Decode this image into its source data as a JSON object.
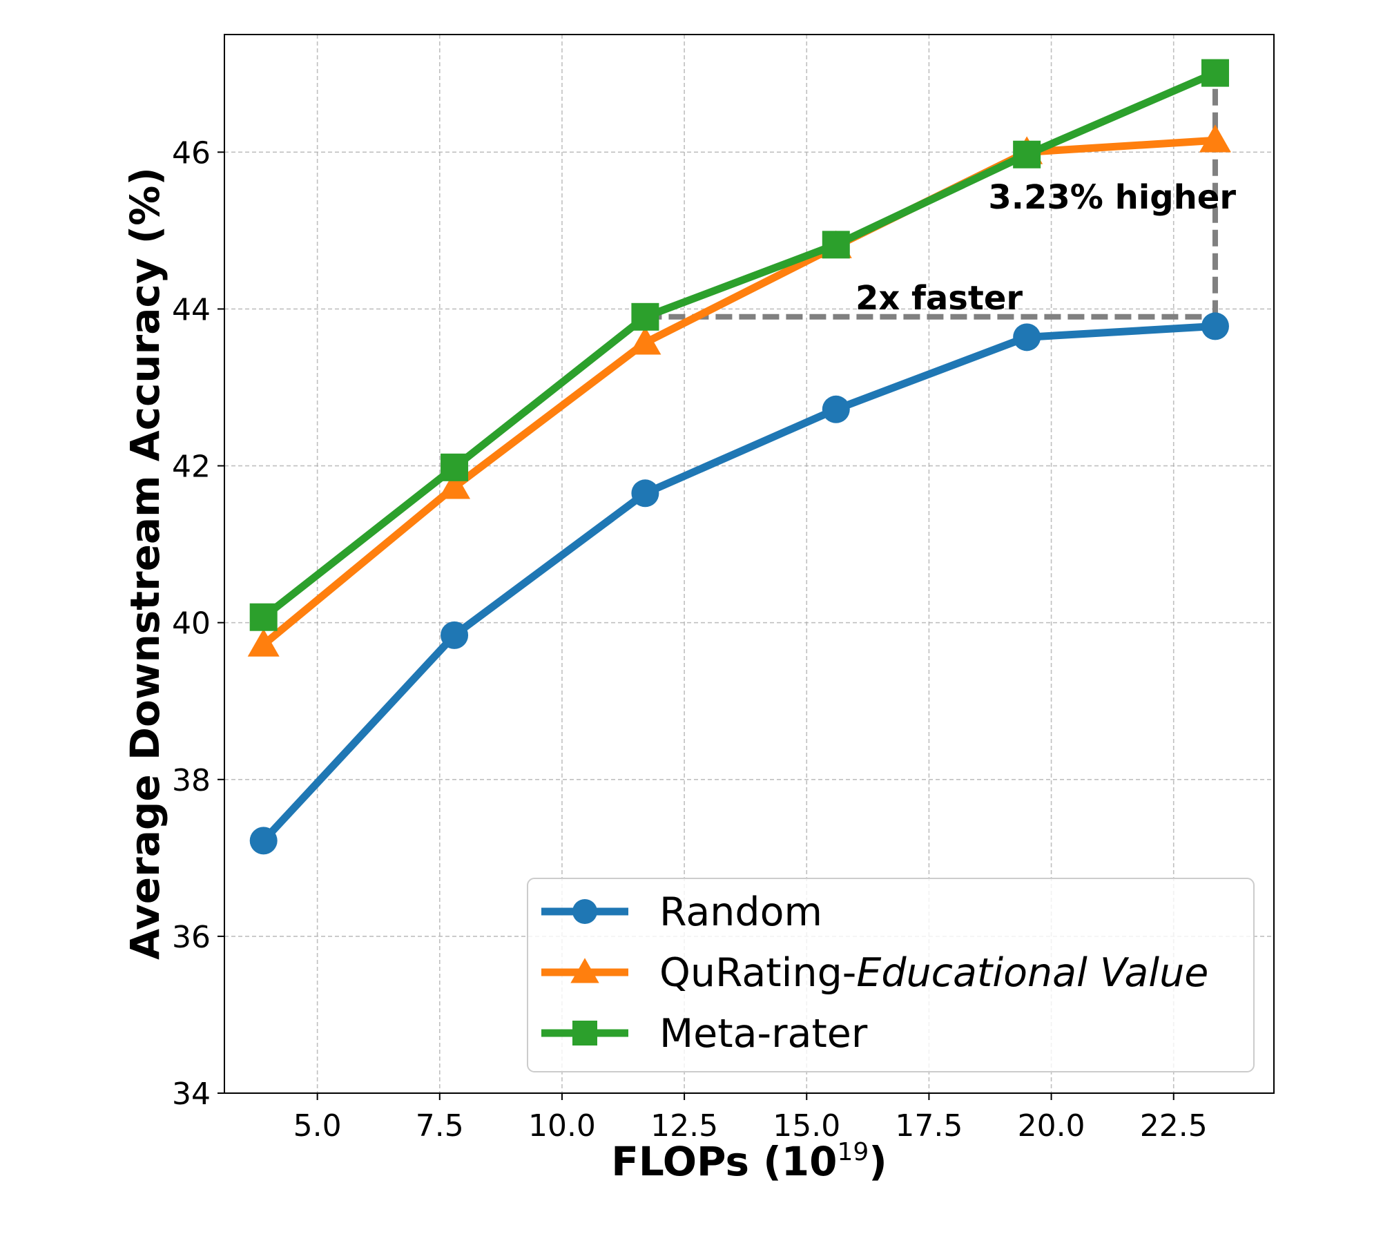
{
  "chart_data": {
    "type": "line",
    "xlabel": "FLOPs (10",
    "xlabel_exponent": "19",
    "xlabel_close": ")",
    "ylabel": "Average Downstream Accuracy (%)",
    "xlim": [
      3.1,
      24.55
    ],
    "ylim": [
      34,
      47.5
    ],
    "x_ticks": [
      5.0,
      7.5,
      10.0,
      12.5,
      15.0,
      17.5,
      20.0,
      22.5
    ],
    "x_tick_labels": [
      "5.0",
      "7.5",
      "10.0",
      "12.5",
      "15.0",
      "17.5",
      "20.0",
      "22.5"
    ],
    "y_ticks": [
      34,
      36,
      38,
      40,
      42,
      44,
      46
    ],
    "y_tick_labels": [
      "34",
      "36",
      "38",
      "40",
      "42",
      "44",
      "46"
    ],
    "grid": true,
    "legend_position": "lower-right",
    "x": [
      3.9,
      7.8,
      11.7,
      15.6,
      19.5,
      23.35
    ],
    "series": [
      {
        "name": "Random",
        "name_italic": "",
        "color": "#1f77b4",
        "marker": "circle",
        "values": [
          37.22,
          39.84,
          41.65,
          42.72,
          43.64,
          43.78
        ]
      },
      {
        "name": "QuRating-",
        "name_italic": "Educational Value",
        "color": "#ff7f0e",
        "marker": "triangle",
        "values": [
          39.72,
          41.73,
          43.57,
          44.8,
          46.0,
          46.15
        ]
      },
      {
        "name": "Meta-rater",
        "name_italic": "",
        "color": "#2ca02c",
        "marker": "square",
        "values": [
          40.07,
          41.98,
          43.9,
          44.82,
          45.97,
          47.01
        ]
      }
    ],
    "annotations": [
      {
        "text": "3.23% higher"
      },
      {
        "text": "2x faster"
      }
    ],
    "reference_lines": {
      "color": "#808080",
      "horizontal": {
        "x_start": 11.7,
        "x_end": 23.35,
        "y": 43.9
      },
      "vertical": {
        "x": 23.35,
        "y_start": 43.9,
        "y_end": 47.01
      }
    }
  }
}
